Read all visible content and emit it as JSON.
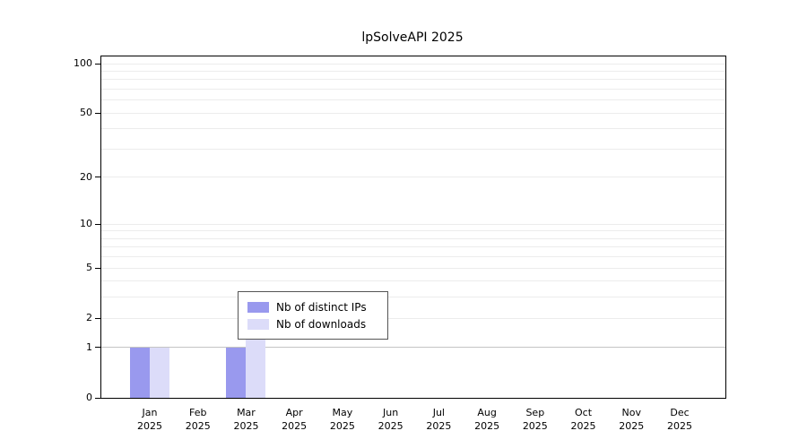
{
  "title": "lpSolveAPI 2025",
  "chart_data": {
    "type": "bar",
    "title": "lpSolveAPI 2025",
    "categories": [
      "Jan",
      "Feb",
      "Mar",
      "Apr",
      "May",
      "Jun",
      "Jul",
      "Aug",
      "Sep",
      "Oct",
      "Nov",
      "Dec"
    ],
    "category_year": "2025",
    "series": [
      {
        "name": "Nb of distinct IPs",
        "color": "#9999ee",
        "values": [
          1,
          0,
          1,
          0,
          0,
          0,
          0,
          0,
          0,
          0,
          0,
          0
        ]
      },
      {
        "name": "Nb of downloads",
        "color": "#dcdcf9",
        "values": [
          1,
          0,
          2,
          0,
          0,
          0,
          0,
          0,
          0,
          0,
          0,
          0
        ]
      }
    ],
    "yticks": [
      0,
      1,
      2,
      5,
      10,
      20,
      50,
      100
    ],
    "gridline_values": [
      1,
      2,
      3,
      4,
      5,
      6,
      7,
      8,
      9,
      10,
      20,
      30,
      40,
      50,
      60,
      70,
      80,
      90,
      100
    ],
    "scale": "log1p",
    "ylim": [
      0,
      100
    ],
    "grid": "horizontal-minor",
    "legend_position": "bottom-center"
  }
}
